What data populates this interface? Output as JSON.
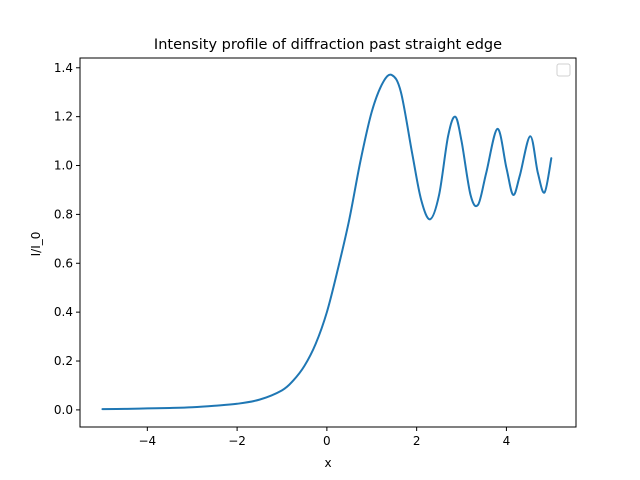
{
  "chart_data": {
    "type": "line",
    "title": "Intensity profile of diffraction past straight edge",
    "xlabel": "x",
    "ylabel": "I/I_0",
    "xlim": [
      -5.5,
      5.55
    ],
    "ylim": [
      -0.07,
      1.44
    ],
    "xticks": [
      -4,
      -2,
      0,
      2,
      4
    ],
    "xtick_labels": [
      "−4",
      "−2",
      "0",
      "2",
      "4"
    ],
    "yticks": [
      0.0,
      0.2,
      0.4,
      0.6,
      0.8,
      1.0,
      1.2,
      1.4
    ],
    "ytick_labels": [
      "0.0",
      "0.2",
      "0.4",
      "0.6",
      "0.8",
      "1.0",
      "1.2",
      "1.4"
    ],
    "grid": false,
    "legend": {
      "placement": "top-right",
      "entries": []
    },
    "series": [
      {
        "color": "#1f77b4",
        "x": [
          -5.0,
          -4.5,
          -4.0,
          -3.5,
          -3.0,
          -2.5,
          -2.0,
          -1.5,
          -1.0,
          -0.75,
          -0.5,
          -0.25,
          0.0,
          0.25,
          0.5,
          0.75,
          1.0,
          1.25,
          1.45,
          1.65,
          1.9,
          2.1,
          2.3,
          2.5,
          2.7,
          2.86,
          3.0,
          3.2,
          3.37,
          3.55,
          3.8,
          4.0,
          4.15,
          4.3,
          4.53,
          4.7,
          4.85,
          5.0
        ],
        "y": [
          0.003,
          0.004,
          0.006,
          0.008,
          0.011,
          0.017,
          0.025,
          0.042,
          0.08,
          0.12,
          0.18,
          0.27,
          0.4,
          0.58,
          0.78,
          1.02,
          1.22,
          1.34,
          1.37,
          1.3,
          1.05,
          0.86,
          0.78,
          0.88,
          1.12,
          1.2,
          1.1,
          0.88,
          0.84,
          0.97,
          1.15,
          0.99,
          0.88,
          0.96,
          1.12,
          0.97,
          0.89,
          1.03
        ]
      }
    ]
  }
}
